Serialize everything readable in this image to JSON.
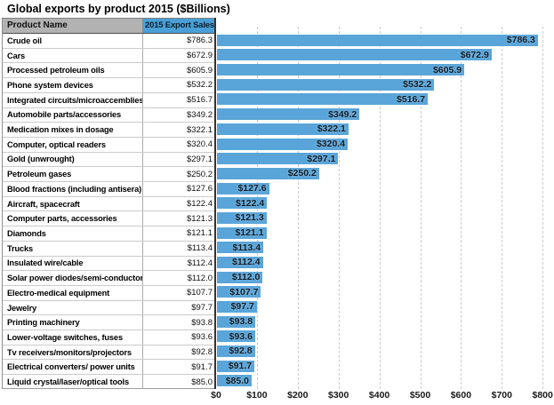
{
  "title": "Global exports by product 2015 ($Billions)",
  "table": {
    "columns": [
      "Product Name",
      "2015 Export Sales"
    ],
    "rows": [
      {
        "product": "Crude oil",
        "sales": "$786.3"
      },
      {
        "product": "Cars",
        "sales": "$672.9"
      },
      {
        "product": "Processed petroleum oils",
        "sales": "$605.9"
      },
      {
        "product": "Phone system devices",
        "sales": "$532.2"
      },
      {
        "product": "Integrated circuits/microaccemblies",
        "sales": "$516.7"
      },
      {
        "product": "Automobile parts/accessories",
        "sales": "$349.2"
      },
      {
        "product": "Medication mixes in dosage",
        "sales": "$322.1"
      },
      {
        "product": "Computer, optical readers",
        "sales": "$320.4"
      },
      {
        "product": "Gold (unwrought)",
        "sales": "$297.1"
      },
      {
        "product": "Petroleum gases",
        "sales": "$250.2"
      },
      {
        "product": "Blood fractions (including antisera)",
        "sales": "$127.6"
      },
      {
        "product": "Aircraft, spacecraft",
        "sales": "$122.4"
      },
      {
        "product": "Computer parts, accessories",
        "sales": "$121.3"
      },
      {
        "product": "Diamonds",
        "sales": "$121.1"
      },
      {
        "product": "Trucks",
        "sales": "$113.4"
      },
      {
        "product": "Insulated wire/cable",
        "sales": "$112.4"
      },
      {
        "product": "Solar power diodes/semi-conductors",
        "sales": "$112.0"
      },
      {
        "product": "Electro-medical equipment",
        "sales": "$107.7"
      },
      {
        "product": "Jewelry",
        "sales": "$97.7"
      },
      {
        "product": "Printing machinery",
        "sales": "$93.8"
      },
      {
        "product": "Lower-voltage switches, fuses",
        "sales": "$93.6"
      },
      {
        "product": "Tv receivers/monitors/projectors",
        "sales": "$92.8"
      },
      {
        "product": "Electrical converters/ power units",
        "sales": "$91.7"
      },
      {
        "product": "Liquid crystal/laser/optical tools",
        "sales": "$85.0"
      }
    ]
  },
  "chart_data": {
    "type": "bar",
    "orientation": "horizontal",
    "title": "Global exports by product 2015 ($Billions)",
    "categories": [
      "Crude oil",
      "Cars",
      "Processed petroleum oils",
      "Phone system devices",
      "Integrated circuits/microaccemblies",
      "Automobile parts/accessories",
      "Medication mixes in dosage",
      "Computer, optical readers",
      "Gold (unwrought)",
      "Petroleum gases",
      "Blood fractions (including antisera)",
      "Aircraft, spacecraft",
      "Computer parts, accessories",
      "Diamonds",
      "Trucks",
      "Insulated wire/cable",
      "Solar power diodes/semi-conductors",
      "Electro-medical equipment",
      "Jewelry",
      "Printing machinery",
      "Lower-voltage switches, fuses",
      "Tv receivers/monitors/projectors",
      "Electrical converters/ power units",
      "Liquid crystal/laser/optical tools"
    ],
    "values": [
      786.3,
      672.9,
      605.9,
      532.2,
      516.7,
      349.2,
      322.1,
      320.4,
      297.1,
      250.2,
      127.6,
      122.4,
      121.3,
      121.1,
      113.4,
      112.4,
      112.0,
      107.7,
      97.7,
      93.8,
      93.6,
      92.8,
      91.7,
      85.0
    ],
    "value_labels": [
      "$786.3",
      "$672.9",
      "$605.9",
      "$532.2",
      "$516.7",
      "$349.2",
      "$322.1",
      "$320.4",
      "$297.1",
      "$250.2",
      "$127.6",
      "$122.4",
      "$121.3",
      "$121.1",
      "$113.4",
      "$112.4",
      "$112.0",
      "$107.7",
      "$97.7",
      "$93.8",
      "$93.6",
      "$92.8",
      "$91.7",
      "$85.0"
    ],
    "x_ticks": [
      "$0",
      "$100",
      "$200",
      "$300",
      "$400",
      "$500",
      "$600",
      "$700",
      "$800"
    ],
    "xlim": [
      0,
      800
    ],
    "grid": "vertical-dashed",
    "legend": "none",
    "bar_color": "#59A5D9"
  },
  "colors": {
    "bar": "#59A5D9",
    "header_fill_blue": "#4AA0D6",
    "header_fill_gray": "#B2B2B2",
    "gridline": "#CCCCCC",
    "axis_line": "#333333"
  }
}
